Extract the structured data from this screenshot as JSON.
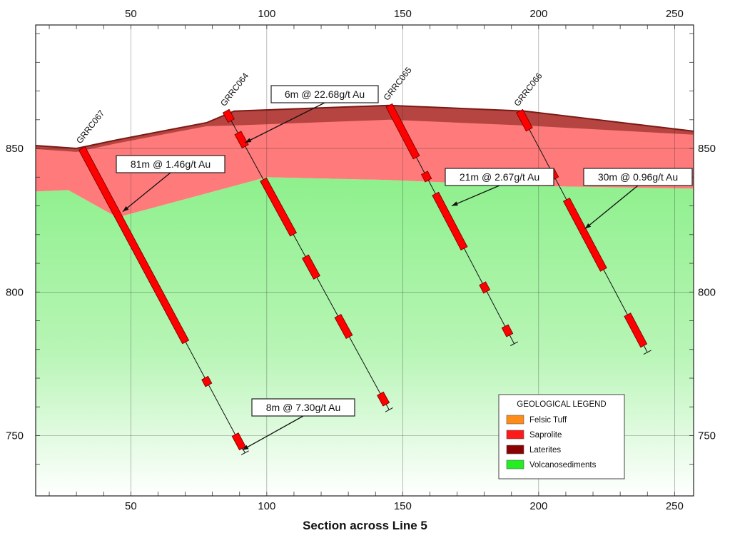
{
  "caption": "Section across Line 5",
  "colors": {
    "laterite": "#7a1a14",
    "saprolite": "#ff7a7a",
    "volcanosediments_top": "#8ef08c",
    "volcanosediments_bottom": "#ffffff",
    "intercept": "#ff0000",
    "grid": "#333333"
  },
  "axes": {
    "x_ticks": [
      "50",
      "100",
      "150",
      "200",
      "250"
    ],
    "y_ticks": [
      "850",
      "800",
      "750"
    ],
    "x_range": [
      15,
      257
    ],
    "y_range": [
      729,
      893
    ]
  },
  "surfaces": {
    "topography": [
      [
        15,
        851
      ],
      [
        30,
        850
      ],
      [
        45,
        853
      ],
      [
        78,
        859
      ],
      [
        88,
        863
      ],
      [
        145,
        865
      ],
      [
        195,
        863
      ],
      [
        257,
        856
      ]
    ],
    "top_of_fresh": [
      [
        15,
        835
      ],
      [
        27,
        835.5
      ],
      [
        45,
        826
      ],
      [
        100,
        840
      ],
      [
        145,
        839
      ],
      [
        195,
        837
      ],
      [
        257,
        836
      ]
    ]
  },
  "drillholes": [
    {
      "name": "GRRC067",
      "collar": [
        32,
        850
      ],
      "end": [
        92,
        744
      ],
      "intercepts": [
        [
          0,
          0.636
        ],
        [
          0.754,
          0.777
        ],
        [
          0.94,
          0.985
        ]
      ]
    },
    {
      "name": "GRRC064",
      "collar": [
        85,
        863
      ],
      "end": [
        145,
        759
      ],
      "intercepts": [
        [
          0,
          0.032
        ],
        [
          0.073,
          0.118
        ],
        [
          0.229,
          0.413
        ],
        [
          0.487,
          0.557
        ],
        [
          0.686,
          0.756
        ],
        [
          0.946,
          0.982
        ]
      ]
    },
    {
      "name": "GRRC065",
      "collar": [
        145,
        865
      ],
      "end": [
        191,
        782
      ],
      "intercepts": [
        [
          0,
          0.218
        ],
        [
          0.283,
          0.314
        ],
        [
          0.371,
          0.6
        ],
        [
          0.747,
          0.781
        ],
        [
          0.927,
          0.964
        ]
      ]
    },
    {
      "name": "GRRC066",
      "collar": [
        193,
        863
      ],
      "end": [
        240,
        779
      ],
      "intercepts": [
        [
          0,
          0.076
        ],
        [
          0.247,
          0.28
        ],
        [
          0.367,
          0.657
        ],
        [
          0.844,
          0.972
        ]
      ]
    }
  ],
  "callouts": [
    {
      "text": "6m @ 22.68g/t Au",
      "point": [
        92,
        852
      ]
    },
    {
      "text": "81m @ 1.46g/t Au",
      "point": [
        47,
        828
      ]
    },
    {
      "text": "21m @ 2.67g/t Au",
      "point": [
        168,
        830
      ]
    },
    {
      "text": "30m @ 0.96g/t Au",
      "point": [
        217,
        822
      ]
    },
    {
      "text": "8m @ 7.30g/t Au",
      "point": [
        91,
        745
      ]
    }
  ],
  "legend": {
    "title": "GEOLOGICAL LEGEND",
    "items": [
      {
        "label": "Felsic Tuff",
        "color": "#ff8c1a"
      },
      {
        "label": "Saprolite",
        "color": "#ff1a1a"
      },
      {
        "label": "Laterites",
        "color": "#8b0000"
      },
      {
        "label": "Volcanosediments",
        "color": "#22ee22"
      }
    ]
  }
}
